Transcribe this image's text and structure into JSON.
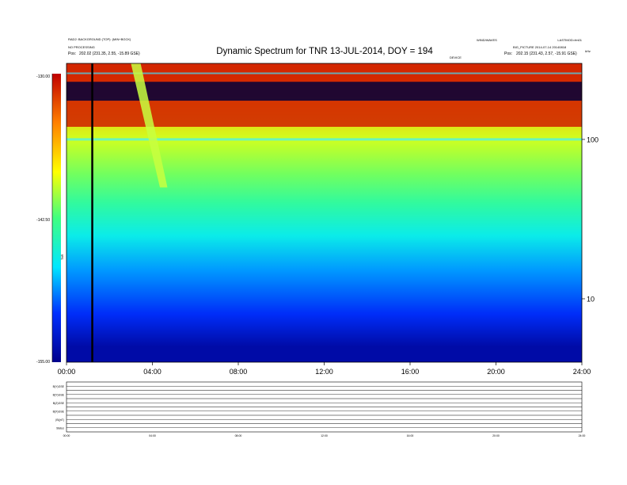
{
  "header": {
    "title": "Dynamic Spectrum for TNR 13-JUL-2014, DOY = 194",
    "left_line1": "RAD2: BACKGROUND (TOP): (MIN+BGCK)",
    "left_line2": "NO PROCESSING",
    "left_line3": "Pos:",
    "left_pos": "202.02 (231.35, 2.55, -15.89 GSE)",
    "center_code": "WIND/WAVES",
    "right_line1": "LASTMOD=fm01",
    "right_line2": "BIG_PICTURE 2014-07-14 20140818",
    "right_line3": "Pos:",
    "right_pos": "202.15 (231.43, 2.57, -15.91 GSE)",
    "sub_label": "DEVICE",
    "khz_label": "kHz"
  },
  "colorbar": {
    "ticks": [
      "-130.00",
      "-142.50",
      "-155.00"
    ],
    "unit_label": "TNR",
    "vmin": -155.0,
    "vmax": -130.0
  },
  "chart_data": [
    {
      "type": "heatmap",
      "title": "Dynamic Spectrum for TNR 13-JUL-2014, DOY = 194",
      "x_range_hours": [
        0,
        24
      ],
      "x_ticks": [
        "00:00",
        "04:00",
        "08:00",
        "12:00",
        "16:00",
        "20:00",
        "24:00"
      ],
      "y_scale": "log",
      "y_unit": "kHz",
      "y_range_khz": [
        4,
        300
      ],
      "y_ticks": [
        "100",
        "10"
      ],
      "intensity_unit": "dB",
      "intensity_range": [
        -155,
        -130
      ],
      "band_levels": [
        {
          "freq_khz": 250,
          "intensity": -133
        },
        {
          "freq_khz": 180,
          "intensity": -136
        },
        {
          "freq_khz": 100,
          "intensity": -139.5
        },
        {
          "freq_khz": 60,
          "intensity": -141.5
        },
        {
          "freq_khz": 40,
          "intensity": -143.5
        },
        {
          "freq_khz": 25,
          "intensity": -146
        },
        {
          "freq_khz": 15,
          "intensity": -148.5
        },
        {
          "freq_khz": 8,
          "intensity": -151
        },
        {
          "freq_khz": 5,
          "intensity": -154
        }
      ],
      "features": [
        {
          "name": "type III burst drift",
          "start_hour": 3.0,
          "end_hour": 4.7
        },
        {
          "name": "plasma line",
          "start_hour": 0,
          "end_hour": 24
        },
        {
          "name": "data gap",
          "hour": 1.2
        }
      ]
    },
    {
      "type": "line",
      "panels": [
        "B(Y)GSE",
        "B(Y)GSE",
        "B(Z)GSE",
        "B(X)GSE",
        "|B|(nT)",
        "Status"
      ],
      "x_range_hours": [
        0,
        24
      ],
      "x_ticks": [
        "00:00",
        "04:00",
        "08:00",
        "12:00",
        "16:00",
        "20:00",
        "24:00"
      ]
    }
  ]
}
